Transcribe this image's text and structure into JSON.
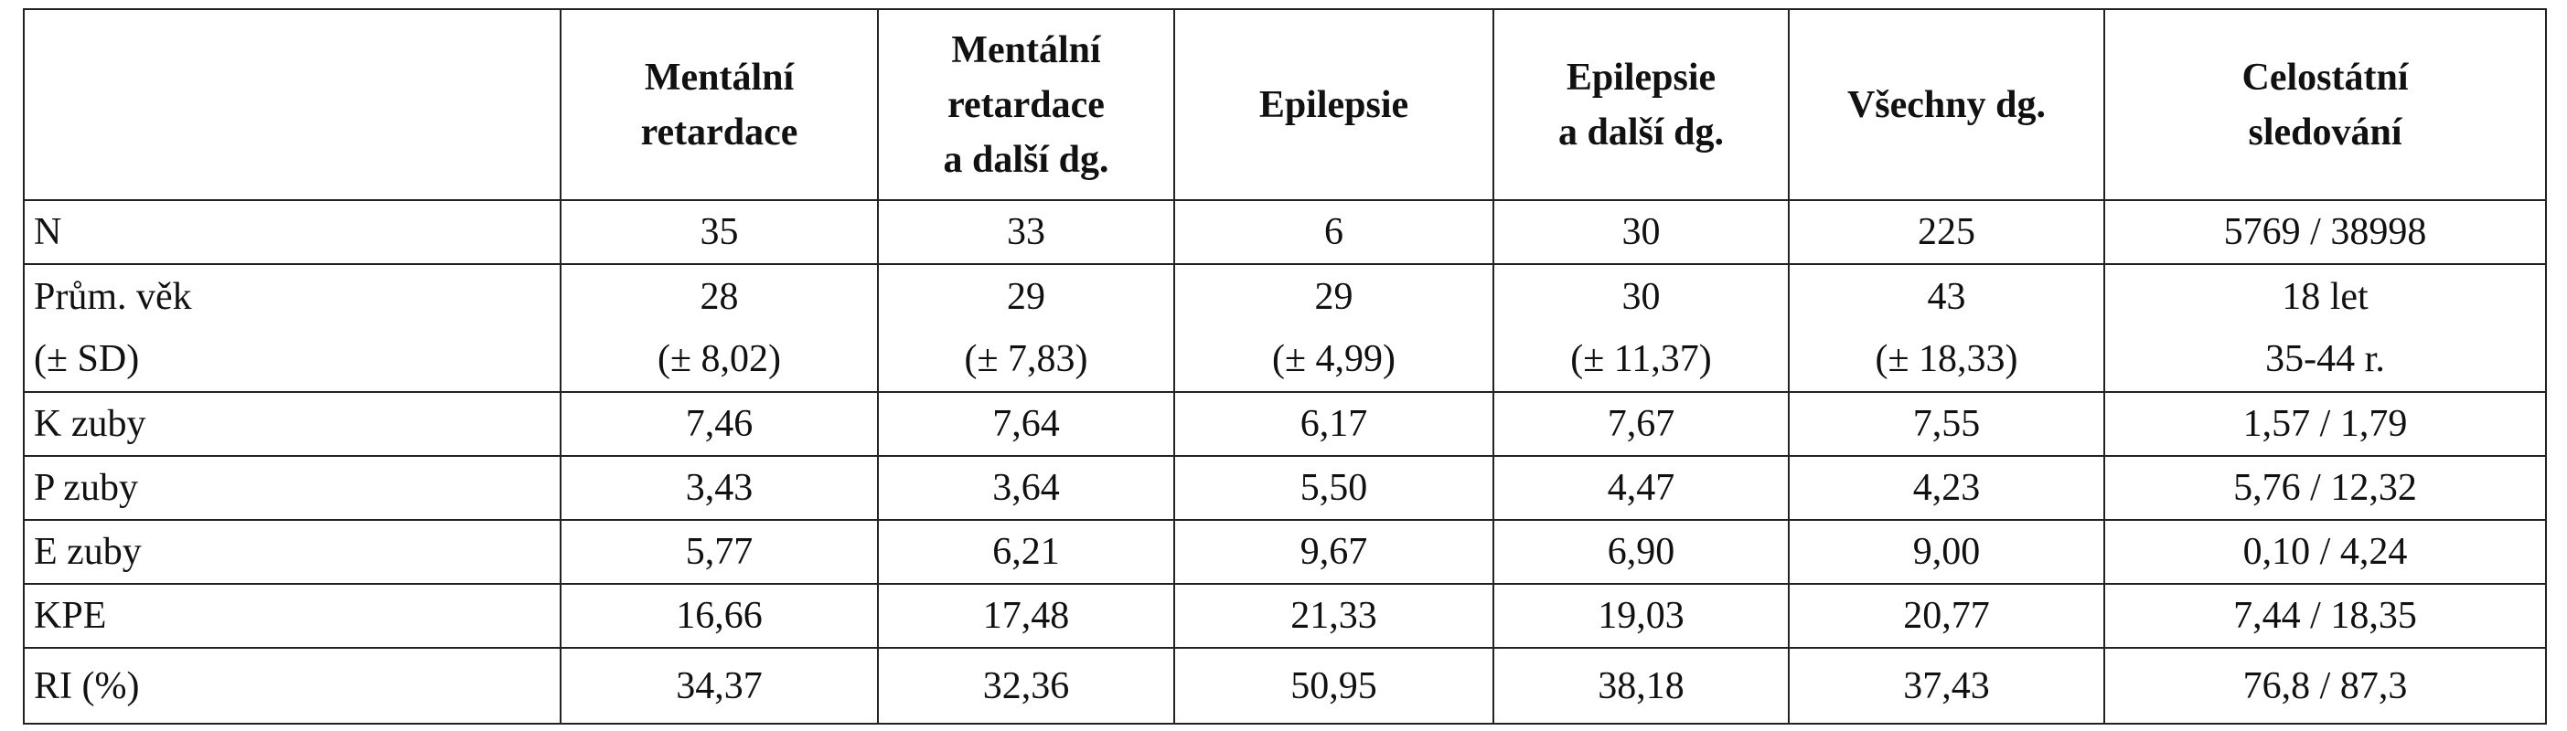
{
  "table": {
    "header": [
      [],
      [
        "Mentální",
        "retardace"
      ],
      [
        "Mentální",
        "retardace",
        "a další dg."
      ],
      [
        "Epilepsie"
      ],
      [
        "Epilepsie",
        "a další dg."
      ],
      [
        "Všechny dg."
      ],
      [
        "Celostátní",
        "sledování"
      ]
    ],
    "rows": [
      [
        [
          "N"
        ],
        [
          "35"
        ],
        [
          "33"
        ],
        [
          "6"
        ],
        [
          "30"
        ],
        [
          "225"
        ],
        [
          "5769 / 38998"
        ]
      ],
      [
        [
          "Prům. věk",
          "(± SD)"
        ],
        [
          "28",
          "(± 8,02)"
        ],
        [
          "29",
          "(± 7,83)"
        ],
        [
          "29",
          "(± 4,99)"
        ],
        [
          "30",
          "(± 11,37)"
        ],
        [
          "43",
          "(± 18,33)"
        ],
        [
          "18 let",
          "35-44 r."
        ]
      ],
      [
        [
          "K zuby"
        ],
        [
          "7,46"
        ],
        [
          "7,64"
        ],
        [
          "6,17"
        ],
        [
          "7,67"
        ],
        [
          "7,55"
        ],
        [
          "1,57 / 1,79"
        ]
      ],
      [
        [
          "P zuby"
        ],
        [
          "3,43"
        ],
        [
          "3,64"
        ],
        [
          "5,50"
        ],
        [
          "4,47"
        ],
        [
          "4,23"
        ],
        [
          "5,76 / 12,32"
        ]
      ],
      [
        [
          "E zuby"
        ],
        [
          "5,77"
        ],
        [
          "6,21"
        ],
        [
          "9,67"
        ],
        [
          "6,90"
        ],
        [
          "9,00"
        ],
        [
          "0,10 / 4,24"
        ]
      ],
      [
        [
          "KPE"
        ],
        [
          "16,66"
        ],
        [
          "17,48"
        ],
        [
          "21,33"
        ],
        [
          "19,03"
        ],
        [
          "20,77"
        ],
        [
          "7,44 / 18,35"
        ]
      ],
      [
        [
          "RI (%)"
        ],
        [
          "34,37"
        ],
        [
          "32,36"
        ],
        [
          "50,95"
        ],
        [
          "38,18"
        ],
        [
          "37,43"
        ],
        [
          "76,8 / 87,3"
        ]
      ]
    ]
  }
}
